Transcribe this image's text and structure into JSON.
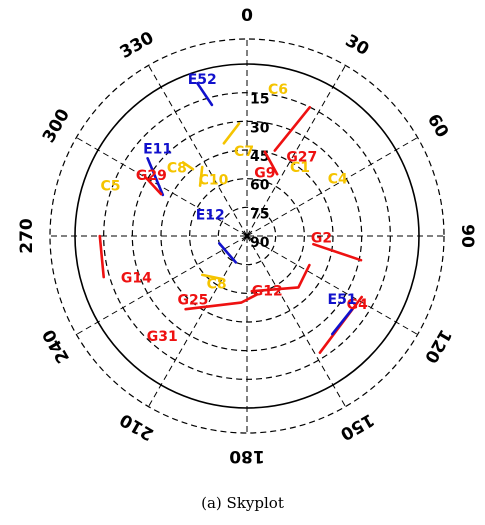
{
  "caption": "(a) Skyplot",
  "chart_data": {
    "type": "scatter",
    "projection": "polar-skyplot",
    "elevation_rings": [
      0,
      15,
      30,
      45,
      60,
      75,
      90
    ],
    "elevation_labels": [
      "15",
      "30",
      "45",
      "60",
      "75",
      "90"
    ],
    "azimuth_labels": [
      "0",
      "30",
      "60",
      "90",
      "120",
      "150",
      "180",
      "210",
      "240",
      "270",
      "300",
      "330"
    ],
    "colors": {
      "G": "#ee1111",
      "E": "#1111cc",
      "C": "#f5c400"
    },
    "satellites": [
      {
        "label": "E52",
        "system": "E",
        "track": [
          [
            342,
            6
          ],
          [
            345,
            19
          ]
        ],
        "label_at": [
          344,
          5
        ]
      },
      {
        "label": "C6",
        "system": "C",
        "track": [
          [
            12,
            13
          ]
        ],
        "label_at": [
          12,
          12
        ]
      },
      {
        "label": "G27",
        "system": "G",
        "track": [
          [
            26,
            15
          ],
          [
            18,
            43
          ]
        ],
        "label_at": [
          35,
          40
        ]
      },
      {
        "label": "C7",
        "system": "C",
        "track": [
          [
            356,
            31
          ],
          [
            346,
            40
          ]
        ],
        "label_at": [
          358,
          46
        ]
      },
      {
        "label": "C1",
        "system": "C",
        "track": [
          [
            34,
            42
          ]
        ],
        "label_at": [
          38,
          45
        ]
      },
      {
        "label": "E11",
        "system": "E",
        "track": [
          [
            308,
            24
          ],
          [
            296,
            41
          ]
        ],
        "label_at": [
          314,
          25
        ]
      },
      {
        "label": "G29",
        "system": "G",
        "track": [
          [
            300,
            29
          ],
          [
            296,
            40
          ]
        ],
        "label_at": [
          302,
          31
        ]
      },
      {
        "label": "C8",
        "system": "C",
        "track": [
          [
            319,
            39
          ],
          [
            321,
            45
          ]
        ],
        "label_at": [
          314,
          39
        ]
      },
      {
        "label": "C4",
        "system": "C",
        "track": [
          [
            58,
            37
          ]
        ],
        "label_at": [
          58,
          34
        ]
      },
      {
        "label": "G9",
        "system": "G",
        "track": [
          [
            12,
            45
          ],
          [
            26,
            54
          ]
        ],
        "label_at": [
          16,
          56
        ]
      },
      {
        "label": "C10",
        "system": "C",
        "track": [
          [
            327,
            47
          ],
          [
            317,
            54
          ]
        ],
        "label_at": [
          329,
          56
        ]
      },
      {
        "label": "C5",
        "system": "C",
        "track": [
          [
            290,
            17
          ]
        ],
        "label_at": [
          290,
          14
        ]
      },
      {
        "label": "E12",
        "system": "E",
        "track": [
          [
            255,
            75
          ],
          [
            203,
            75
          ]
        ],
        "label_at": [
          299,
          68
        ]
      },
      {
        "label": "G2",
        "system": "G",
        "track": [
          [
            97,
            55
          ],
          [
            102,
            29
          ]
        ],
        "label_at": [
          92,
          51
        ]
      },
      {
        "label": "C8",
        "system": "C",
        "track": [
          [
            229,
            59
          ],
          [
            210,
            64
          ]
        ],
        "label_at": [
          212,
          60
        ]
      },
      {
        "label": "G12",
        "system": "G",
        "track": [
          [
            175,
            61
          ],
          [
            135,
            52
          ],
          [
            115,
            54
          ]
        ],
        "label_at": [
          160,
          59
        ]
      },
      {
        "label": "G14",
        "system": "G",
        "track": [
          [
            270,
            13
          ],
          [
            254,
            12
          ]
        ],
        "label_at": [
          249,
          28
        ]
      },
      {
        "label": "G25",
        "system": "G",
        "track": [
          [
            220,
            40
          ],
          [
            185,
            55
          ],
          [
            170,
            59
          ]
        ],
        "label_at": [
          220,
          46
        ]
      },
      {
        "label": "G4",
        "system": "G",
        "track": [
          [
            118,
            22
          ],
          [
            148,
            18
          ]
        ],
        "label_at": [
          122,
          22
        ]
      },
      {
        "label": "E51",
        "system": "E",
        "track": [
          [
            125,
            23
          ],
          [
            139,
            22
          ]
        ],
        "label_at": [
          124,
          30
        ]
      },
      {
        "label": "G31",
        "system": "G",
        "track": [
          [
            210,
            16
          ]
        ],
        "label_at": [
          220,
          21
        ]
      }
    ]
  }
}
